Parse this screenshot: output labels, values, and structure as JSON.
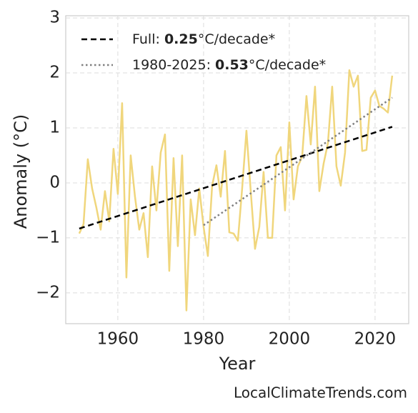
{
  "chart_data": {
    "type": "line",
    "xlabel": "Year",
    "ylabel": "Anomaly (°C)",
    "source": "LocalClimateTrends.com",
    "x": [
      1951,
      1952,
      1953,
      1954,
      1955,
      1956,
      1957,
      1958,
      1959,
      1960,
      1961,
      1962,
      1963,
      1964,
      1965,
      1966,
      1967,
      1968,
      1969,
      1970,
      1971,
      1972,
      1973,
      1974,
      1975,
      1976,
      1977,
      1978,
      1979,
      1980,
      1981,
      1982,
      1983,
      1984,
      1985,
      1986,
      1987,
      1988,
      1989,
      1990,
      1991,
      1992,
      1993,
      1994,
      1995,
      1996,
      1997,
      1998,
      1999,
      2000,
      2001,
      2002,
      2003,
      2004,
      2005,
      2006,
      2007,
      2008,
      2009,
      2010,
      2011,
      2012,
      2013,
      2014,
      2015,
      2016,
      2017,
      2018,
      2019,
      2020,
      2021,
      2022,
      2023,
      2024
    ],
    "series": [
      {
        "color": "#f0d67c",
        "values": [
          -0.92,
          -0.75,
          0.43,
          -0.1,
          -0.45,
          -0.85,
          -0.15,
          -0.7,
          0.62,
          -0.2,
          1.45,
          -1.72,
          0.5,
          -0.25,
          -0.85,
          -0.55,
          -1.35,
          0.3,
          -0.5,
          0.55,
          0.88,
          -1.6,
          0.45,
          -1.15,
          0.5,
          -2.32,
          -0.3,
          -0.95,
          -0.1,
          -0.8,
          -1.33,
          -0.05,
          0.32,
          -0.25,
          0.58,
          -0.9,
          -0.92,
          -1.05,
          -0.1,
          0.95,
          -0.15,
          -1.2,
          -0.8,
          0.2,
          -1.0,
          -1.0,
          0.5,
          0.65,
          -0.5,
          1.1,
          -0.3,
          0.3,
          0.48,
          1.58,
          0.7,
          1.75,
          -0.15,
          0.35,
          0.72,
          1.75,
          0.3,
          -0.05,
          0.55,
          2.05,
          1.75,
          1.95,
          0.58,
          0.6,
          1.55,
          1.68,
          1.4,
          1.35,
          1.28,
          1.95
        ]
      }
    ],
    "trends": [
      {
        "name": "Full: ",
        "slope": 0.25,
        "unit": "°C/decade*",
        "color": "#000000",
        "dash": "dashed",
        "x": [
          1951,
          2024
        ],
        "values": [
          -0.83,
          1.02
        ]
      },
      {
        "name": "1980-2025: ",
        "slope": 0.53,
        "unit": "°C/decade*",
        "color": "#808080",
        "dash": "dotted",
        "x": [
          1980,
          2024
        ],
        "values": [
          -0.77,
          1.55
        ]
      }
    ],
    "xlim": [
      1947.85,
      2027.85
    ],
    "xticks": [
      1960,
      1980,
      2000,
      2020
    ],
    "ylim": [
      -2.56,
      3.04
    ],
    "yticks": [
      {
        "value": -2,
        "label": "−2"
      },
      {
        "value": -1,
        "label": "−1"
      },
      0,
      1,
      2,
      3
    ],
    "grid": true,
    "legend": "upper left"
  }
}
